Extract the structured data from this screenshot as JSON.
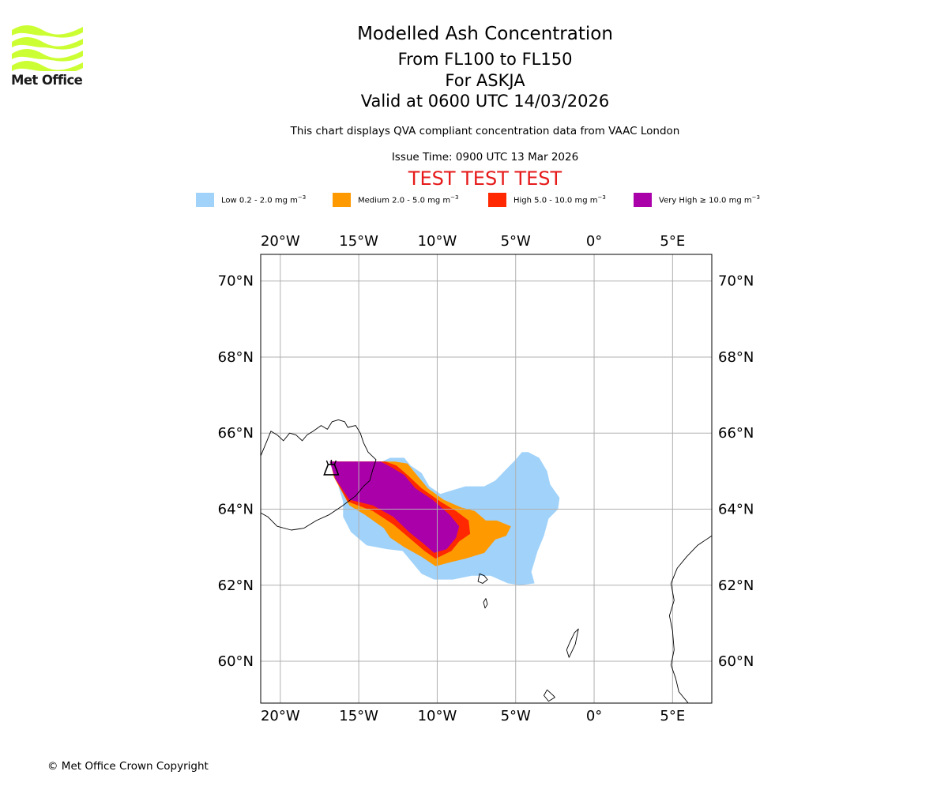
{
  "logo": {
    "text": "Met Office",
    "wave_color": "#ccff33",
    "text_color": "#1b1b1b",
    "icon": "met-office-wave-logo"
  },
  "header": {
    "title_lines": [
      "Modelled Ash Concentration",
      "From FL100 to FL150",
      "For ASKJA",
      "Valid at 0600 UTC 14/03/2026"
    ],
    "subtitle": "This chart displays QVA compliant concentration data from VAAC London",
    "issue_time": "Issue Time: 0900 UTC 13 Mar 2026",
    "test_banner": "TEST TEST TEST",
    "test_color": "#e61a1a"
  },
  "legend": [
    {
      "label": "Low 0.2 - 2.0 mg m",
      "sup": "−3",
      "color": "#a0d2fa"
    },
    {
      "label": "Medium 2.0 - 5.0 mg m",
      "sup": "−3",
      "color": "#ff9900"
    },
    {
      "label": "High 5.0 - 10.0 mg m",
      "sup": "−3",
      "color": "#ff2800"
    },
    {
      "label": "Very High  ≥  10.0 mg m",
      "sup": "−3",
      "color": "#aa00aa"
    }
  ],
  "map": {
    "projection": "lat-lon",
    "lon_range": [
      -21.25,
      7.5
    ],
    "lat_range": [
      58.9,
      70.7
    ],
    "lon_ticks": [
      {
        "value": -20,
        "label": "20°W"
      },
      {
        "value": -15,
        "label": "15°W"
      },
      {
        "value": -10,
        "label": "10°W"
      },
      {
        "value": -5,
        "label": "5°W"
      },
      {
        "value": 0,
        "label": "0°"
      },
      {
        "value": 5,
        "label": "5°E"
      }
    ],
    "lat_ticks": [
      {
        "value": 70,
        "label": "70°N"
      },
      {
        "value": 68,
        "label": "68°N"
      },
      {
        "value": 66,
        "label": "66°N"
      },
      {
        "value": 64,
        "label": "64°N"
      },
      {
        "value": 62,
        "label": "62°N"
      },
      {
        "value": 60,
        "label": "60°N"
      }
    ],
    "grid": true,
    "gridline_color": "#b0b0b0",
    "volcano": {
      "name": "ASKJA",
      "lon": -16.75,
      "lat": 65.05,
      "icon": "volcano-icon"
    },
    "ash_zones": [
      {
        "level": "Low",
        "color": "#a0d2fa",
        "points": [
          [
            -13.0,
            65.35
          ],
          [
            -12.1,
            65.35
          ],
          [
            -11.7,
            65.15
          ],
          [
            -11.0,
            64.95
          ],
          [
            -10.5,
            64.6
          ],
          [
            -9.8,
            64.4
          ],
          [
            -9.0,
            64.5
          ],
          [
            -8.2,
            64.6
          ],
          [
            -7.0,
            64.6
          ],
          [
            -6.3,
            64.75
          ],
          [
            -5.6,
            65.05
          ],
          [
            -5.0,
            65.3
          ],
          [
            -4.6,
            65.5
          ],
          [
            -4.2,
            65.5
          ],
          [
            -3.5,
            65.35
          ],
          [
            -3.0,
            65.0
          ],
          [
            -2.8,
            64.65
          ],
          [
            -2.2,
            64.3
          ],
          [
            -2.3,
            64.0
          ],
          [
            -2.9,
            63.75
          ],
          [
            -3.2,
            63.3
          ],
          [
            -3.6,
            62.9
          ],
          [
            -4.0,
            62.35
          ],
          [
            -3.8,
            62.05
          ],
          [
            -4.7,
            62.0
          ],
          [
            -5.5,
            62.05
          ],
          [
            -6.6,
            62.25
          ],
          [
            -7.8,
            62.25
          ],
          [
            -9.0,
            62.15
          ],
          [
            -10.2,
            62.15
          ],
          [
            -11.0,
            62.3
          ],
          [
            -11.6,
            62.6
          ],
          [
            -12.2,
            62.9
          ],
          [
            -13.2,
            62.95
          ],
          [
            -14.5,
            63.05
          ],
          [
            -15.5,
            63.4
          ],
          [
            -16.0,
            63.8
          ],
          [
            -16.0,
            64.2
          ],
          [
            -16.3,
            64.6
          ],
          [
            -15.0,
            65.05
          ],
          [
            -13.8,
            65.2
          ]
        ]
      },
      {
        "level": "Medium",
        "color": "#ff9900",
        "points": [
          [
            -16.8,
            65.25
          ],
          [
            -13.6,
            65.25
          ],
          [
            -12.7,
            65.25
          ],
          [
            -11.9,
            65.2
          ],
          [
            -11.3,
            64.9
          ],
          [
            -10.6,
            64.55
          ],
          [
            -9.6,
            64.25
          ],
          [
            -8.5,
            64.05
          ],
          [
            -7.6,
            63.95
          ],
          [
            -6.9,
            63.7
          ],
          [
            -6.2,
            63.7
          ],
          [
            -5.3,
            63.55
          ],
          [
            -5.6,
            63.3
          ],
          [
            -6.3,
            63.2
          ],
          [
            -7.0,
            62.85
          ],
          [
            -8.2,
            62.7
          ],
          [
            -9.2,
            62.6
          ],
          [
            -10.1,
            62.5
          ],
          [
            -11.0,
            62.75
          ],
          [
            -12.1,
            63.0
          ],
          [
            -13.0,
            63.25
          ],
          [
            -13.4,
            63.5
          ],
          [
            -14.6,
            63.85
          ],
          [
            -15.6,
            64.1
          ],
          [
            -16.6,
            64.85
          ]
        ]
      },
      {
        "level": "High",
        "color": "#ff2800",
        "points": [
          [
            -16.8,
            65.25
          ],
          [
            -13.3,
            65.25
          ],
          [
            -12.6,
            65.15
          ],
          [
            -11.9,
            64.9
          ],
          [
            -11.0,
            64.55
          ],
          [
            -9.8,
            64.2
          ],
          [
            -8.8,
            63.95
          ],
          [
            -8.0,
            63.7
          ],
          [
            -7.9,
            63.35
          ],
          [
            -8.6,
            63.15
          ],
          [
            -9.1,
            62.9
          ],
          [
            -10.1,
            62.7
          ],
          [
            -10.8,
            62.9
          ],
          [
            -11.8,
            63.25
          ],
          [
            -12.8,
            63.6
          ],
          [
            -14.1,
            63.95
          ],
          [
            -15.7,
            64.2
          ],
          [
            -16.5,
            64.8
          ]
        ]
      },
      {
        "level": "Very High",
        "color": "#aa00aa",
        "points": [
          [
            -16.85,
            65.25
          ],
          [
            -13.6,
            65.25
          ],
          [
            -12.9,
            65.1
          ],
          [
            -12.1,
            64.9
          ],
          [
            -11.4,
            64.55
          ],
          [
            -10.3,
            64.25
          ],
          [
            -9.2,
            63.85
          ],
          [
            -8.6,
            63.55
          ],
          [
            -8.8,
            63.25
          ],
          [
            -9.4,
            62.95
          ],
          [
            -10.2,
            62.85
          ],
          [
            -10.9,
            63.1
          ],
          [
            -11.8,
            63.4
          ],
          [
            -12.8,
            63.8
          ],
          [
            -14.1,
            64.1
          ],
          [
            -15.6,
            64.25
          ],
          [
            -16.5,
            64.8
          ]
        ]
      }
    ],
    "coastlines": {
      "iceland": [
        [
          -21.25,
          65.4
        ],
        [
          -20.9,
          65.75
        ],
        [
          -20.6,
          66.05
        ],
        [
          -20.2,
          65.95
        ],
        [
          -19.8,
          65.8
        ],
        [
          -19.4,
          66.0
        ],
        [
          -19.0,
          65.95
        ],
        [
          -18.6,
          65.8
        ],
        [
          -18.3,
          65.95
        ],
        [
          -17.9,
          66.05
        ],
        [
          -17.4,
          66.2
        ],
        [
          -17.0,
          66.1
        ],
        [
          -16.7,
          66.3
        ],
        [
          -16.3,
          66.35
        ],
        [
          -15.9,
          66.3
        ],
        [
          -15.7,
          66.15
        ],
        [
          -15.2,
          66.2
        ],
        [
          -14.9,
          66.0
        ],
        [
          -14.7,
          65.75
        ],
        [
          -14.4,
          65.5
        ],
        [
          -13.9,
          65.3
        ],
        [
          -14.1,
          65.05
        ],
        [
          -14.3,
          64.75
        ],
        [
          -14.7,
          64.6
        ],
        [
          -15.2,
          64.35
        ],
        [
          -16.0,
          64.1
        ],
        [
          -16.9,
          63.85
        ],
        [
          -17.7,
          63.7
        ],
        [
          -18.5,
          63.5
        ],
        [
          -19.3,
          63.45
        ],
        [
          -20.2,
          63.55
        ],
        [
          -20.8,
          63.8
        ],
        [
          -21.25,
          63.9
        ]
      ],
      "faroes": [
        [
          [
            -7.3,
            62.3
          ],
          [
            -7.0,
            62.25
          ],
          [
            -6.8,
            62.15
          ],
          [
            -7.1,
            62.05
          ],
          [
            -7.4,
            62.1
          ]
        ],
        [
          [
            -6.9,
            61.65
          ],
          [
            -6.8,
            61.5
          ],
          [
            -6.95,
            61.4
          ],
          [
            -7.05,
            61.55
          ]
        ]
      ],
      "shetland": [
        [
          [
            -1.55,
            60.5
          ],
          [
            -1.25,
            60.75
          ],
          [
            -1.0,
            60.85
          ],
          [
            -1.2,
            60.45
          ],
          [
            -1.6,
            60.1
          ],
          [
            -1.75,
            60.3
          ]
        ],
        [
          [
            -3.0,
            59.25
          ],
          [
            -2.6,
            59.1
          ],
          [
            -2.5,
            59.05
          ],
          [
            -2.9,
            58.95
          ],
          [
            -3.2,
            59.1
          ]
        ]
      ],
      "norway": [
        [
          [
            7.5,
            63.3
          ],
          [
            6.6,
            63.05
          ],
          [
            5.9,
            62.75
          ],
          [
            5.3,
            62.45
          ],
          [
            4.9,
            62.05
          ],
          [
            5.1,
            61.6
          ],
          [
            4.8,
            61.2
          ],
          [
            5.0,
            60.8
          ],
          [
            5.1,
            60.3
          ],
          [
            4.9,
            59.9
          ],
          [
            5.2,
            59.55
          ],
          [
            5.4,
            59.2
          ],
          [
            6.0,
            58.9
          ],
          [
            7.5,
            58.9
          ]
        ]
      ]
    }
  },
  "copyright": "© Met Office Crown Copyright"
}
